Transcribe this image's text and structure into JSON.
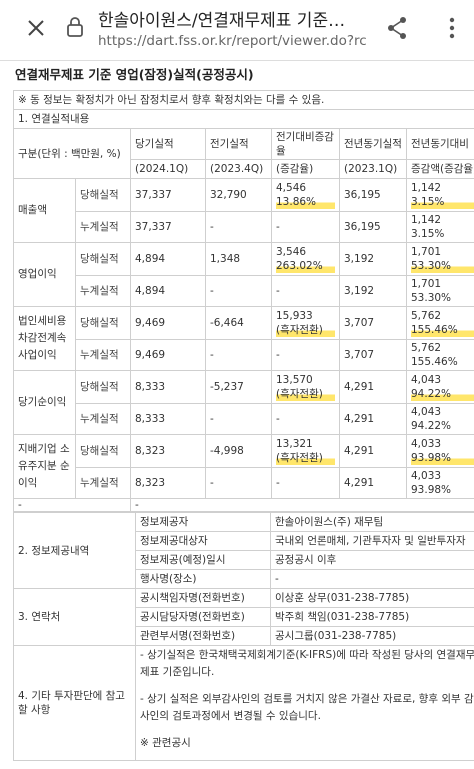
{
  "browser": {
    "title": "한솔아이원스/연결재무제표 기준…",
    "url": "https://dart.fss.or.kr/report/viewer.do?rc"
  },
  "heading": "연결재무제표 기준 영업(잠정)실적(공정공시)",
  "notice": "※ 동 정보는 확정치가 아닌 잠정치로서 향후 확정치와는 다를 수 있음.",
  "section1": {
    "title": "1. 연결실적내용",
    "header_top": [
      "구분(단위 : 백만원, %)",
      "당기실적",
      "전기실적",
      "전기대비증감율",
      "전년동기실적",
      "전년동기대비"
    ],
    "header_bottom": [
      "(2024.1Q)",
      "(2023.4Q)",
      "(증감율)",
      "(2023.1Q)",
      "증감액(증감율)"
    ],
    "groups": [
      {
        "item": "매출액",
        "rows": [
          {
            "kind": "당해실적",
            "cells": [
              "37,337",
              "32,790",
              [
                "4,546",
                "13.86%"
              ],
              "36,195",
              [
                "1,142",
                "3.15%"
              ]
            ]
          },
          {
            "kind": "누계실적",
            "cells": [
              "37,337",
              "-",
              "-",
              "36,195",
              [
                "1,142",
                "3.15%"
              ]
            ]
          }
        ]
      },
      {
        "item": "영업이익",
        "rows": [
          {
            "kind": "당해실적",
            "cells": [
              "4,894",
              "1,348",
              [
                "3,546",
                "263.02%"
              ],
              "3,192",
              [
                "1,701",
                "53.30%"
              ]
            ]
          },
          {
            "kind": "누계실적",
            "cells": [
              "4,894",
              "-",
              "-",
              "3,192",
              [
                "1,701",
                "53.30%"
              ]
            ]
          }
        ]
      },
      {
        "item": "법인세비용차감전계속사업이익",
        "rows": [
          {
            "kind": "당해실적",
            "cells": [
              "9,469",
              "-6,464",
              [
                "15,933",
                "(흑자전환)"
              ],
              "3,707",
              [
                "5,762",
                "155.46%"
              ]
            ]
          },
          {
            "kind": "누계실적",
            "cells": [
              "9,469",
              "-",
              "-",
              "3,707",
              [
                "5,762",
                "155.46%"
              ]
            ]
          }
        ]
      },
      {
        "item": "당기순이익",
        "rows": [
          {
            "kind": "당해실적",
            "cells": [
              "8,333",
              "-5,237",
              [
                "13,570",
                "(흑자전환)"
              ],
              "4,291",
              [
                "4,043",
                "94.22%"
              ]
            ]
          },
          {
            "kind": "누계실적",
            "cells": [
              "8,333",
              "-",
              "-",
              "4,291",
              [
                "4,043",
                "94.22%"
              ]
            ]
          }
        ]
      },
      {
        "item": "지배기업 소유주지분 순이익",
        "rows": [
          {
            "kind": "당해실적",
            "cells": [
              "8,323",
              "-4,998",
              [
                "13,321",
                "(흑자전환)"
              ],
              "4,291",
              [
                "4,033",
                "93.98%"
              ]
            ]
          },
          {
            "kind": "누계실적",
            "cells": [
              "8,323",
              "-",
              "-",
              "4,291",
              [
                "4,033",
                "93.98%"
              ]
            ]
          }
        ]
      }
    ],
    "footer_row": [
      "-",
      "-"
    ]
  },
  "sections": [
    {
      "title": "2. 정보제공내역",
      "rows": [
        [
          "정보제공자",
          "한솔아이원스(주) 재무팀"
        ],
        [
          "정보제공대상자",
          "국내외 언론매체, 기관투자자 및 일반투자자"
        ],
        [
          "정보제공(예정)일시",
          "공정공시 이후"
        ],
        [
          "행사명(장소)",
          "-"
        ]
      ]
    },
    {
      "title": "3. 연락처",
      "rows": [
        [
          "공시책임자명(전화번호)",
          "이상훈 상무(031-238-7785)"
        ],
        [
          "공시담당자명(전화번호)",
          "박주희 책임(031-238-7785)"
        ],
        [
          "관련부서명(전화번호)",
          "공시그룹(031-238-7785)"
        ]
      ]
    }
  ],
  "section4": {
    "title": "4. 기타 투자판단에 참고할 사항",
    "notes": [
      "- 상기실적은 한국채택국제회계기준(K-IFRS)에 따라 작성된 당사의 연결재무제표 기준입니다.",
      "- 상기 실적은 외부감사인의 검토를 거치지 않은 가결산 자료로, 향후 외부 감사인의 검토과정에서 변경될 수 있습니다.",
      "※ 관련공시"
    ]
  }
}
